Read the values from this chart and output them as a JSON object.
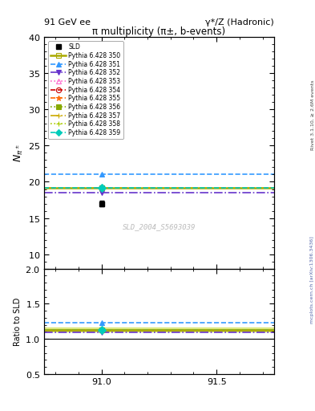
{
  "title_left": "91 GeV ee",
  "title_right": "γ*/Z (Hadronic)",
  "plot_title": "π multiplicity (π±, b-events)",
  "watermark": "SLD_2004_S5693039",
  "ylabel_main": "$N_{\\pi^\\pm}$",
  "ylabel_ratio": "Ratio to SLD",
  "right_label_top": "Rivet 3.1.10, ≥ 2.6M events",
  "right_label_bottom": "mcplots.cern.ch [arXiv:1306.3436]",
  "xlim": [
    90.75,
    91.75
  ],
  "xticks": [
    91.0,
    91.5
  ],
  "ylim_main": [
    8.0,
    40.0
  ],
  "yticks_main": [
    10,
    15,
    20,
    25,
    30,
    35,
    40
  ],
  "ylim_ratio": [
    0.5,
    2.0
  ],
  "yticks_ratio": [
    0.5,
    1.0,
    1.5,
    2.0
  ],
  "sld_x": 91.0,
  "sld_y": 17.0,
  "sld_yerr": 0.4,
  "pythia_x": 91.0,
  "pythia_lines": [
    {
      "label": "Pythia 6.428 350",
      "color": "#aaaa00",
      "linestyle": "-",
      "marker": "s",
      "mfc": "none",
      "y": 19.2
    },
    {
      "label": "Pythia 6.428 351",
      "color": "#3399ff",
      "linestyle": "--",
      "marker": "^",
      "mfc": "#3399ff",
      "y": 21.0
    },
    {
      "label": "Pythia 6.428 352",
      "color": "#6633cc",
      "linestyle": "-.",
      "marker": "v",
      "mfc": "#6633cc",
      "y": 18.5
    },
    {
      "label": "Pythia 6.428 353",
      "color": "#ff66cc",
      "linestyle": ":",
      "marker": "^",
      "mfc": "none",
      "y": 19.2
    },
    {
      "label": "Pythia 6.428 354",
      "color": "#cc0000",
      "linestyle": "--",
      "marker": "o",
      "mfc": "none",
      "y": 19.2
    },
    {
      "label": "Pythia 6.428 355",
      "color": "#ff6600",
      "linestyle": "--",
      "marker": "*",
      "mfc": "none",
      "y": 19.2
    },
    {
      "label": "Pythia 6.428 356",
      "color": "#88aa00",
      "linestyle": ":",
      "marker": "s",
      "mfc": "#88aa00",
      "y": 19.2
    },
    {
      "label": "Pythia 6.428 357",
      "color": "#ccaa00",
      "linestyle": "-.",
      "marker": "+",
      "mfc": "#ccaa00",
      "y": 19.2
    },
    {
      "label": "Pythia 6.428 358",
      "color": "#aacc00",
      "linestyle": ":",
      "marker": "+",
      "mfc": "#aacc00",
      "y": 19.2
    },
    {
      "label": "Pythia 6.428 359",
      "color": "#00ccbb",
      "linestyle": "--",
      "marker": "D",
      "mfc": "#00ccbb",
      "y": 19.2
    }
  ]
}
